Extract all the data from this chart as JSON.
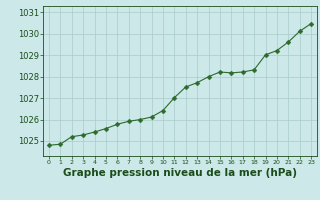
{
  "x": [
    0,
    1,
    2,
    3,
    4,
    5,
    6,
    7,
    8,
    9,
    10,
    11,
    12,
    13,
    14,
    15,
    16,
    17,
    18,
    19,
    20,
    21,
    22,
    23
  ],
  "y": [
    1024.8,
    1024.85,
    1025.2,
    1025.28,
    1025.42,
    1025.58,
    1025.78,
    1025.92,
    1026.0,
    1026.12,
    1026.42,
    1027.02,
    1027.52,
    1027.72,
    1028.0,
    1028.22,
    1028.18,
    1028.22,
    1028.32,
    1029.02,
    1029.22,
    1029.62,
    1030.12,
    1030.48
  ],
  "line_color": "#2d6a2d",
  "marker": "D",
  "marker_size": 2.5,
  "bg_color": "#cce8e8",
  "grid_color": "#aacccc",
  "xlabel": "Graphe pression niveau de la mer (hPa)",
  "xlabel_color": "#1a4d1a",
  "xlabel_fontsize": 7.5,
  "tick_color": "#1a4d1a",
  "ytick_fontsize": 6,
  "xtick_fontsize": 4.5,
  "ylim": [
    1024.3,
    1031.3
  ],
  "xlim": [
    -0.5,
    23.5
  ],
  "yticks": [
    1025,
    1026,
    1027,
    1028,
    1029,
    1030,
    1031
  ],
  "xticks": [
    0,
    1,
    2,
    3,
    4,
    5,
    6,
    7,
    8,
    9,
    10,
    11,
    12,
    13,
    14,
    15,
    16,
    17,
    18,
    19,
    20,
    21,
    22,
    23
  ]
}
